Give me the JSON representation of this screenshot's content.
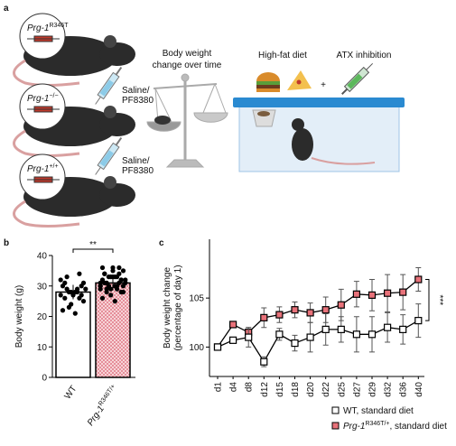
{
  "panel_labels": [
    "a",
    "b",
    "c"
  ],
  "panel_a": {
    "genotypes": [
      {
        "base": "Prg-1",
        "sup": "R346T"
      },
      {
        "base": "Prg-1",
        "sup": "−/−"
      },
      {
        "base": "Prg-1",
        "sup": "+/+"
      }
    ],
    "treatments": [
      [
        "Saline/",
        "PF8380"
      ],
      [
        "Saline/",
        "PF8380"
      ]
    ],
    "scale_label": [
      "Body weight",
      "change over time"
    ],
    "diet_label": "High-fat diet",
    "plus": "+",
    "inhibition_label": "ATX inhibition"
  },
  "chart_data": [
    {
      "type": "bar",
      "categories": [
        "WT",
        "Prg-1"
      ],
      "category_superscripts": {
        "1": "R346T/+"
      },
      "values": [
        28,
        31
      ],
      "colors": [
        "#ffffff",
        "#f2b3bb"
      ],
      "points": [
        [
          27,
          28,
          22,
          29,
          31,
          26,
          33,
          30,
          28,
          25,
          24,
          29,
          27,
          32,
          21,
          30,
          28,
          26,
          34,
          29,
          27,
          23,
          31,
          28
        ],
        [
          30,
          33,
          36,
          29,
          31,
          34,
          28,
          32,
          30,
          35,
          27,
          31,
          33,
          29,
          25,
          32,
          30,
          34,
          36,
          31,
          28,
          33,
          30,
          29,
          32,
          35,
          31,
          30,
          26,
          33,
          34,
          31,
          29,
          32,
          30,
          28,
          33,
          31,
          36,
          30
        ]
      ],
      "y_label": "Body weight (g)",
      "ylim": [
        0,
        40
      ],
      "yticks": [
        0,
        10,
        20,
        30,
        40
      ],
      "significance": "**"
    },
    {
      "type": "line",
      "categories": [
        "d1",
        "d4",
        "d8",
        "d12",
        "d15",
        "d18",
        "d20",
        "d22",
        "d25",
        "d27",
        "d29",
        "d32",
        "d36",
        "d40"
      ],
      "series": [
        {
          "name": "WT, standard diet",
          "color": "#ffffff",
          "values": [
            100,
            100.7,
            101,
            98.5,
            101.3,
            100.4,
            101,
            101.8,
            101.8,
            101.3,
            101.3,
            102,
            101.8,
            102.7
          ],
          "errors": [
            0,
            0.3,
            1,
            0.5,
            0.6,
            0.8,
            1.5,
            1.6,
            1.3,
            1.8,
            1.8,
            1.5,
            1.5,
            1.7
          ]
        },
        {
          "name": "Prg-1",
          "name_superscript": "R346T/+",
          "name_suffix": ", standard diet",
          "color": "#e8727a",
          "values": [
            100,
            102.3,
            101.5,
            103,
            103.3,
            103.8,
            103.5,
            103.8,
            104.3,
            105.4,
            105.3,
            105.5,
            105.6,
            106.9
          ],
          "errors": [
            0,
            0.3,
            0.5,
            1,
            0.8,
            0.8,
            1,
            1.3,
            1.6,
            1.3,
            1.6,
            1.9,
            1.8,
            1.2
          ]
        }
      ],
      "y_label": [
        "Body weight change",
        "(percentage of day 1)"
      ],
      "ylim": [
        97,
        111
      ],
      "yticks": [
        100,
        105
      ],
      "significance": "***"
    }
  ]
}
